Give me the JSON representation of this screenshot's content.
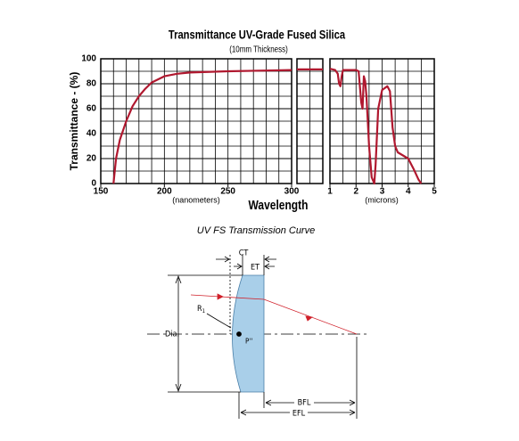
{
  "chart_data": {
    "type": "line",
    "title": "Transmittance UV-Grade Fused Silica",
    "subtitle": "(10mm Thickness)",
    "y_label": "Transmittance - (%)",
    "x_label": "Wavelength",
    "color": "#b0182f",
    "grid": true,
    "ylim": [
      0,
      100
    ],
    "yticks": [
      0,
      20,
      40,
      60,
      80,
      100
    ],
    "panels": [
      {
        "x_unit": "(nanometers)",
        "xlim": [
          150,
          300
        ],
        "xticks": [
          150,
          200,
          250,
          300
        ],
        "x": [
          160,
          162,
          165,
          170,
          175,
          180,
          185,
          190,
          200,
          210,
          220,
          250,
          275,
          300
        ],
        "values": [
          0,
          20,
          35,
          50,
          62,
          70,
          76,
          81,
          86,
          88,
          89,
          90,
          90.5,
          91
        ]
      },
      {
        "values": [
          91.5,
          91.5
        ]
      },
      {
        "x_unit": "(microns)",
        "xlim": [
          1,
          5
        ],
        "xticks": [
          1,
          2,
          3,
          4,
          5
        ],
        "x": [
          1.0,
          1.2,
          1.3,
          1.35,
          1.4,
          1.45,
          1.5,
          2.0,
          2.1,
          2.2,
          2.25,
          2.3,
          2.35,
          2.4,
          2.5,
          2.6,
          2.7,
          2.75,
          2.85,
          3.0,
          3.2,
          3.3,
          3.4,
          3.5,
          3.6,
          4.0,
          4.2,
          4.4,
          4.5
        ],
        "values": [
          92,
          91,
          88,
          80,
          78,
          86,
          91,
          91,
          90,
          65,
          60,
          86,
          82,
          70,
          30,
          5,
          0,
          15,
          60,
          75,
          78,
          74,
          45,
          30,
          25,
          20,
          12,
          3,
          0
        ]
      }
    ],
    "caption": "UV FS Transmission Curve"
  },
  "diagram": {
    "ct": "CT",
    "et": "ET",
    "radius": "R",
    "radius_sub": "1",
    "diameter": "Dia.",
    "principal_point": "P''",
    "bfl": "BFL",
    "efl": "EFL"
  }
}
